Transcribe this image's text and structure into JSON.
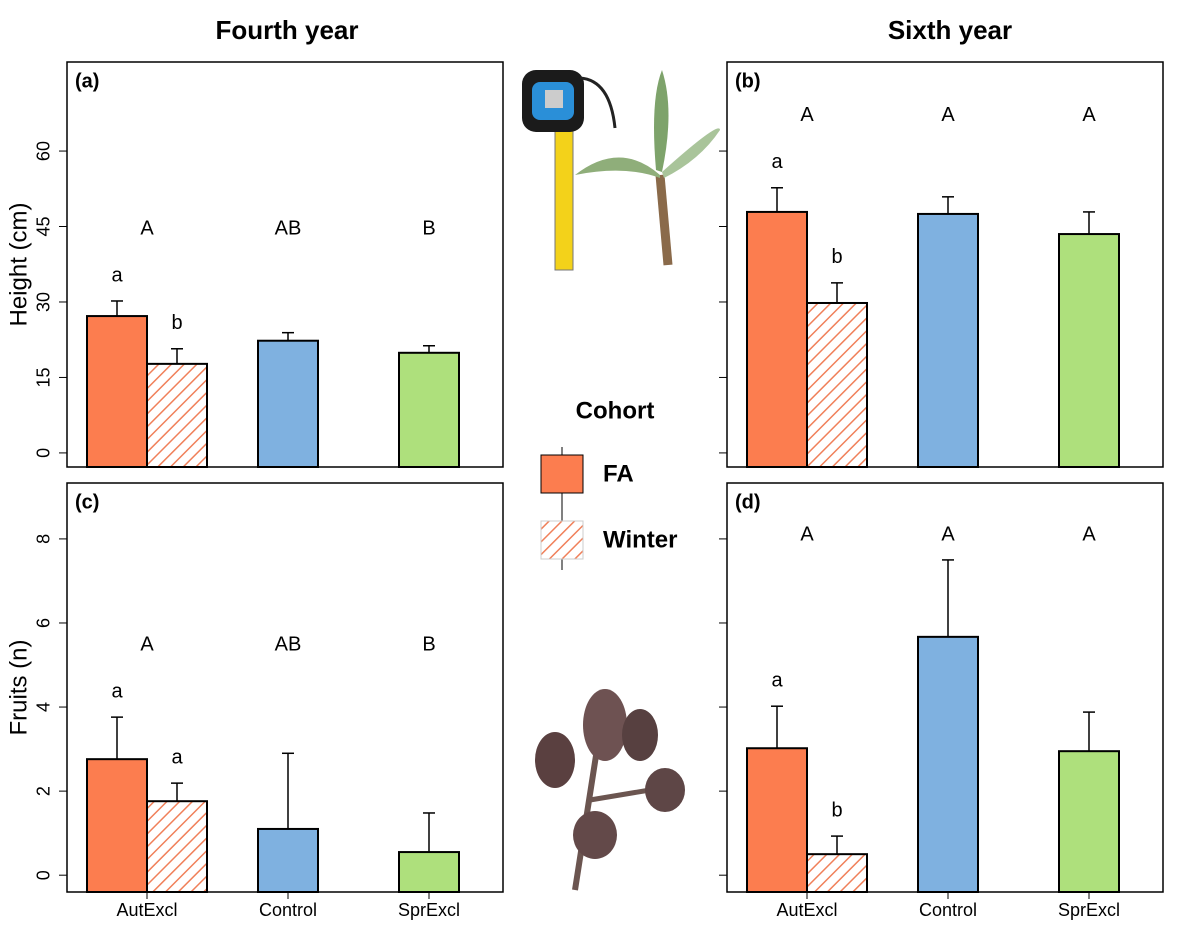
{
  "column_titles": [
    "Fourth year",
    "Sixth year"
  ],
  "legend": {
    "title": "Cohort",
    "entries": [
      {
        "label": "FA",
        "color": "#fc7d4f",
        "hatch": false
      },
      {
        "label": "Winter",
        "color": "#f0805a",
        "hatch": true
      }
    ]
  },
  "chart_data": [
    {
      "type": "bar",
      "panel_label": "(a)",
      "ylabel": "Height (cm)",
      "categories": [
        "AutExcl",
        "Control",
        "SprExcl"
      ],
      "show_categories": false,
      "show_tick_labels": true,
      "ylim": [
        -2.8,
        77.7
      ],
      "yticks": [
        0,
        15,
        30,
        45,
        60
      ],
      "group_letters": [
        "A",
        "AB",
        "B"
      ],
      "series": [
        {
          "values": [
            27.2,
            22.3,
            19.9
          ],
          "errors": [
            3,
            1.6,
            1.4
          ],
          "colors": [
            "#fc7d4f",
            "#7fb1e0",
            "#aee07c"
          ],
          "letters": [
            "a",
            null,
            null
          ]
        },
        {
          "values": [
            17.7,
            null,
            null
          ],
          "errors": [
            3,
            null,
            null
          ],
          "color": "#f0805a",
          "hatch": true,
          "letters": [
            "b",
            null,
            null
          ]
        }
      ]
    },
    {
      "type": "bar",
      "panel_label": "(b)",
      "categories": [
        "AutExcl",
        "Control",
        "SprExcl"
      ],
      "show_categories": false,
      "show_tick_labels": false,
      "ylim": [
        -2.8,
        77.7
      ],
      "yticks": [
        0,
        15,
        30,
        45,
        60
      ],
      "group_letters": [
        "A",
        "A",
        "A"
      ],
      "series": [
        {
          "values": [
            47.9,
            47.5,
            43.5
          ],
          "errors": [
            4.8,
            3.4,
            4.4
          ],
          "colors": [
            "#fc7d4f",
            "#7fb1e0",
            "#aee07c"
          ],
          "letters": [
            "a",
            null,
            null
          ]
        },
        {
          "values": [
            29.8,
            null,
            null
          ],
          "errors": [
            4,
            null,
            null
          ],
          "color": "#f0805a",
          "hatch": true,
          "letters": [
            "b",
            null,
            null
          ]
        }
      ]
    },
    {
      "type": "bar",
      "panel_label": "(c)",
      "ylabel": "Fruits (n)",
      "categories": [
        "AutExcl",
        "Control",
        "SprExcl"
      ],
      "show_categories": true,
      "show_tick_labels": true,
      "ylim": [
        -0.4,
        9.33
      ],
      "yticks": [
        0,
        2,
        4,
        6,
        8
      ],
      "group_letters": [
        "A",
        "AB",
        "B"
      ],
      "series": [
        {
          "values": [
            2.76,
            1.1,
            0.55
          ],
          "errors": [
            1.0,
            1.8,
            0.93
          ],
          "colors": [
            "#fc7d4f",
            "#7fb1e0",
            "#aee07c"
          ],
          "letters": [
            "a",
            null,
            null
          ]
        },
        {
          "values": [
            1.76,
            null,
            null
          ],
          "errors": [
            0.43,
            null,
            null
          ],
          "color": "#f0805a",
          "hatch": true,
          "letters": [
            "a",
            null,
            null
          ]
        }
      ]
    },
    {
      "type": "bar",
      "panel_label": "(d)",
      "categories": [
        "AutExcl",
        "Control",
        "SprExcl"
      ],
      "show_categories": true,
      "show_tick_labels": false,
      "ylim": [
        -0.4,
        9.33
      ],
      "yticks": [
        0,
        2,
        4,
        6,
        8
      ],
      "group_letters": [
        "A",
        "A",
        "A"
      ],
      "series": [
        {
          "values": [
            3.02,
            5.67,
            2.95
          ],
          "errors": [
            1.0,
            1.83,
            0.93
          ],
          "colors": [
            "#fc7d4f",
            "#7fb1e0",
            "#aee07c"
          ],
          "letters": [
            "a",
            null,
            null
          ]
        },
        {
          "values": [
            0.5,
            null,
            null
          ],
          "errors": [
            0.43,
            null,
            null
          ],
          "color": "#f0805a",
          "hatch": true,
          "letters": [
            "b",
            null,
            null
          ]
        }
      ]
    }
  ]
}
